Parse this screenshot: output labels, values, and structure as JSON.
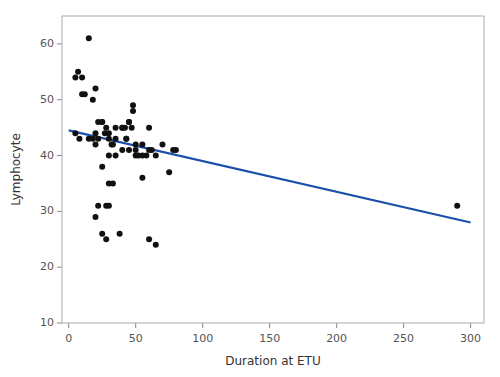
{
  "chart_data": {
    "type": "scatter",
    "x_label": "Duration at ETU",
    "y_label": "Lymphocyte",
    "xlim": [
      -5,
      310
    ],
    "ylim": [
      10,
      65
    ],
    "xticks": [
      0,
      50,
      100,
      150,
      200,
      250,
      300
    ],
    "yticks": [
      10,
      20,
      30,
      40,
      50,
      60
    ],
    "grid": false,
    "series": [
      {
        "type": "scatter",
        "color": "#111111",
        "x": [
          5,
          8,
          10,
          12,
          15,
          18,
          20,
          20,
          20,
          22,
          22,
          25,
          25,
          25,
          27,
          28,
          28,
          30,
          30,
          30,
          30,
          32,
          33,
          35,
          35,
          38,
          40,
          40,
          42,
          43,
          45,
          45,
          47,
          48,
          50,
          50,
          52,
          55,
          55,
          58,
          60,
          60,
          62,
          65,
          65,
          70,
          75,
          78,
          80,
          290,
          5,
          7,
          10,
          15,
          18,
          20,
          22,
          25,
          28,
          30,
          33,
          35,
          40,
          43,
          45,
          48,
          50,
          55,
          60
        ],
        "values": [
          44,
          43,
          51,
          51,
          61,
          50,
          52,
          42,
          29,
          46,
          31,
          46,
          46,
          26,
          44,
          45,
          25,
          44,
          43,
          40,
          35,
          42,
          35,
          43,
          40,
          26,
          45,
          41,
          45,
          43,
          46,
          41,
          45,
          48,
          41,
          40,
          40,
          42,
          36,
          40,
          45,
          25,
          41,
          40,
          24,
          42,
          37,
          41,
          41,
          31,
          54,
          55,
          54,
          43,
          43,
          44,
          43,
          38,
          31,
          31,
          42,
          45,
          45,
          43,
          46,
          49,
          42,
          40,
          41
        ]
      },
      {
        "type": "line",
        "color": "#1a4faa",
        "x": [
          0,
          300
        ],
        "values": [
          44.5,
          28.0
        ]
      }
    ]
  }
}
